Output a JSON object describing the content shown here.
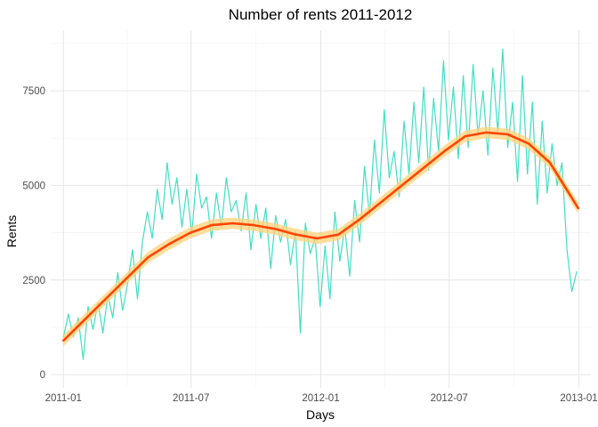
{
  "chart_data": {
    "type": "line",
    "title": "Number of rents 2011-2012",
    "xlabel": "Days",
    "ylabel": "Rents",
    "xlim": [
      "2010-12-14",
      "2013-01-18"
    ],
    "ylim": [
      -350,
      9100
    ],
    "x_ticks": [
      "2011-01",
      "2011-07",
      "2012-01",
      "2012-07",
      "2013-01"
    ],
    "x_tick_dates": [
      "2011-01-01",
      "2011-07-01",
      "2012-01-01",
      "2012-07-01",
      "2013-01-01"
    ],
    "y_ticks": [
      0,
      2500,
      5000,
      7500
    ],
    "grid": true,
    "legend": "none",
    "colors": {
      "raw": "#40e0c0",
      "smooth": "#ff4500",
      "band": "#ffd27a"
    },
    "series": [
      {
        "type": "line",
        "x": [
          "2011-01-01",
          "2011-01-08",
          "2011-01-15",
          "2011-01-22",
          "2011-01-29",
          "2011-02-05",
          "2011-02-12",
          "2011-02-19",
          "2011-02-26",
          "2011-03-05",
          "2011-03-12",
          "2011-03-19",
          "2011-03-26",
          "2011-04-02",
          "2011-04-09",
          "2011-04-16",
          "2011-04-23",
          "2011-04-30",
          "2011-05-07",
          "2011-05-14",
          "2011-05-21",
          "2011-05-28",
          "2011-06-04",
          "2011-06-11",
          "2011-06-18",
          "2011-06-25",
          "2011-07-02",
          "2011-07-09",
          "2011-07-16",
          "2011-07-23",
          "2011-07-30",
          "2011-08-06",
          "2011-08-13",
          "2011-08-20",
          "2011-08-27",
          "2011-09-03",
          "2011-09-10",
          "2011-09-17",
          "2011-09-24",
          "2011-10-01",
          "2011-10-08",
          "2011-10-15",
          "2011-10-22",
          "2011-10-29",
          "2011-11-05",
          "2011-11-12",
          "2011-11-19",
          "2011-11-26",
          "2011-12-03",
          "2011-12-10",
          "2011-12-17",
          "2011-12-24",
          "2011-12-31",
          "2012-01-07",
          "2012-01-14",
          "2012-01-21",
          "2012-01-28",
          "2012-02-04",
          "2012-02-11",
          "2012-02-18",
          "2012-02-25",
          "2012-03-03",
          "2012-03-10",
          "2012-03-17",
          "2012-03-24",
          "2012-03-31",
          "2012-04-07",
          "2012-04-14",
          "2012-04-21",
          "2012-04-28",
          "2012-05-05",
          "2012-05-12",
          "2012-05-19",
          "2012-05-26",
          "2012-06-02",
          "2012-06-09",
          "2012-06-16",
          "2012-06-23",
          "2012-06-30",
          "2012-07-07",
          "2012-07-14",
          "2012-07-21",
          "2012-07-28",
          "2012-08-04",
          "2012-08-11",
          "2012-08-18",
          "2012-08-25",
          "2012-09-01",
          "2012-09-08",
          "2012-09-15",
          "2012-09-22",
          "2012-09-29",
          "2012-10-06",
          "2012-10-13",
          "2012-10-20",
          "2012-10-27",
          "2012-11-03",
          "2012-11-10",
          "2012-11-17",
          "2012-11-24",
          "2012-12-01",
          "2012-12-08",
          "2012-12-15",
          "2012-12-22",
          "2012-12-29"
        ],
        "y": [
          985,
          1600,
          1000,
          1500,
          400,
          1800,
          1200,
          1900,
          1100,
          2100,
          1500,
          2700,
          1700,
          2400,
          3300,
          2000,
          3500,
          4300,
          3600,
          4900,
          4100,
          5600,
          4500,
          5200,
          3900,
          4900,
          3700,
          5300,
          4400,
          4700,
          3600,
          4800,
          3900,
          5200,
          4300,
          4600,
          3800,
          4800,
          3300,
          4500,
          3600,
          4400,
          2800,
          4200,
          3500,
          4100,
          2900,
          3800,
          1100,
          4000,
          3200,
          3600,
          1800,
          3400,
          2000,
          4300,
          3000,
          3900,
          2600,
          4600,
          3500,
          5500,
          4200,
          6200,
          4800,
          7000,
          5200,
          5900,
          4700,
          6700,
          5300,
          7200,
          5600,
          7600,
          5400,
          7300,
          5900,
          8300,
          6200,
          7600,
          5700,
          7900,
          6000,
          8200,
          6300,
          7500,
          5800,
          8100,
          6400,
          8600,
          6000,
          7200,
          5100,
          7900,
          5300,
          7200,
          4500,
          6700,
          4800,
          6100,
          5000,
          5600,
          3300,
          2200,
          2729
        ]
      },
      {
        "type": "smooth",
        "x": [
          "2011-01-01",
          "2011-01-31",
          "2011-03-02",
          "2011-04-01",
          "2011-05-01",
          "2011-05-31",
          "2011-06-30",
          "2011-07-30",
          "2011-08-29",
          "2011-09-28",
          "2011-10-28",
          "2011-11-27",
          "2011-12-27",
          "2012-01-26",
          "2012-02-25",
          "2012-03-26",
          "2012-04-25",
          "2012-05-25",
          "2012-06-24",
          "2012-07-24",
          "2012-08-23",
          "2012-09-22",
          "2012-10-22",
          "2012-11-21",
          "2012-12-31"
        ],
        "y": [
          900,
          1450,
          2000,
          2550,
          3100,
          3450,
          3750,
          3950,
          4000,
          3950,
          3850,
          3700,
          3600,
          3700,
          4100,
          4550,
          5000,
          5450,
          5900,
          6300,
          6400,
          6350,
          6100,
          5600,
          4400
        ],
        "band": 150
      }
    ]
  }
}
